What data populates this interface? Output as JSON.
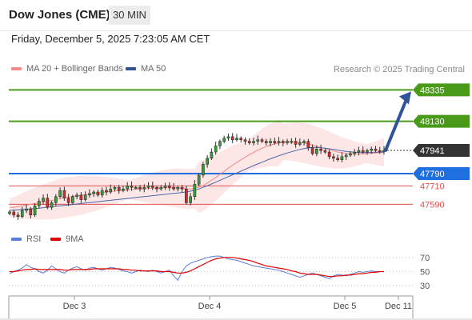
{
  "header": {
    "title": "Dow Jones (CME)",
    "interval": "30 MIN",
    "datetime": "Friday, December 5, 2025 7:23:05 AM CET"
  },
  "legend": {
    "ma20": {
      "label": "MA 20 + Bollinger Bands",
      "color": "#f08a8a"
    },
    "ma50": {
      "label": "MA 50",
      "color": "#2f5597"
    }
  },
  "credit": "Research © 2025 Trading Central",
  "rsi_legend": {
    "rsi": {
      "label": "RSI",
      "color": "#5b7fd6"
    },
    "ma9": {
      "label": "9MA",
      "color": "#e00000"
    }
  },
  "chart_data": [
    {
      "type": "candlestick",
      "ylim": [
        47420,
        48420
      ],
      "last_price": {
        "value": 47941,
        "label": "47941"
      },
      "levels": [
        {
          "value": 48335,
          "label": "48335",
          "kind": "resistance",
          "color": "#4a9a1a"
        },
        {
          "value": 48130,
          "label": "48130",
          "kind": "resistance",
          "color": "#4a9a1a"
        },
        {
          "value": 47790,
          "label": "47790",
          "kind": "pivot",
          "color": "#1f6fe0"
        },
        {
          "value": 47710,
          "label": "47710",
          "kind": "support",
          "color": "#e05050"
        },
        {
          "value": 47590,
          "label": "47590",
          "kind": "support",
          "color": "#e05050"
        }
      ],
      "target_arrow": {
        "from": 47941,
        "to": 48335
      },
      "x_labels": [
        "Dec 3",
        "Dec 4",
        "Dec 5",
        "Dec 11"
      ],
      "close_path": [
        47540,
        47520,
        47510,
        47550,
        47560,
        47520,
        47580,
        47610,
        47630,
        47570,
        47600,
        47640,
        47680,
        47630,
        47600,
        47640,
        47650,
        47620,
        47650,
        47660,
        47670,
        47650,
        47680,
        47670,
        47690,
        47700,
        47680,
        47690,
        47710,
        47700,
        47700,
        47690,
        47700,
        47710,
        47700,
        47690,
        47700,
        47710,
        47700,
        47690,
        47700,
        47690,
        47600,
        47640,
        47720,
        47780,
        47850,
        47890,
        47930,
        47970,
        48000,
        48020,
        48030,
        48010,
        48020,
        48010,
        48000,
        47990,
        48000,
        48010,
        48000,
        47990,
        48000,
        47990,
        48000,
        47990,
        48000,
        48000,
        47980,
        47990,
        48000,
        47960,
        47920,
        47950,
        47940,
        47930,
        47900,
        47890,
        47880,
        47900,
        47910,
        47920,
        47930,
        47940,
        47930,
        47940,
        47950,
        47940,
        47935,
        47941
      ],
      "ma20_path": [
        47570,
        47570,
        47575,
        47580,
        47585,
        47590,
        47595,
        47600,
        47605,
        47610,
        47615,
        47620,
        47628,
        47633,
        47637,
        47641,
        47645,
        47648,
        47652,
        47656,
        47660,
        47663,
        47666,
        47670,
        47673,
        47676,
        47678,
        47681,
        47684,
        47686,
        47688,
        47690,
        47691,
        47693,
        47694,
        47695,
        47696,
        47697,
        47697,
        47697,
        47696,
        47694,
        47690,
        47689,
        47692,
        47700,
        47712,
        47728,
        47746,
        47765,
        47785,
        47805,
        47825,
        47845,
        47862,
        47880,
        47897,
        47913,
        47928,
        47942,
        47955,
        47966,
        47975,
        47983,
        47990,
        47994,
        47997,
        47998,
        47996,
        47994,
        47990,
        47984,
        47975,
        47968,
        47960,
        47953,
        47945,
        47937,
        47930,
        47926,
        47922,
        47920,
        47918,
        47918,
        47919,
        47920,
        47922,
        47924,
        47926,
        47928
      ],
      "ma50_path": [
        47550,
        47552,
        47554,
        47556,
        47558,
        47560,
        47562,
        47565,
        47568,
        47571,
        47574,
        47577,
        47580,
        47583,
        47586,
        47589,
        47592,
        47595,
        47598,
        47601,
        47604,
        47607,
        47610,
        47613,
        47616,
        47619,
        47622,
        47625,
        47628,
        47631,
        47634,
        47637,
        47640,
        47643,
        47646,
        47649,
        47652,
        47655,
        47658,
        47661,
        47664,
        47667,
        47670,
        47675,
        47682,
        47690,
        47700,
        47711,
        47722,
        47734,
        47746,
        47758,
        47770,
        47782,
        47794,
        47806,
        47818,
        47830,
        47842,
        47853,
        47864,
        47875,
        47886,
        47896,
        47906,
        47915,
        47924,
        47932,
        47940,
        47947,
        47953,
        47957,
        47960,
        47960,
        47958,
        47955,
        47951,
        47947,
        47942,
        47938,
        47934,
        47931,
        47929,
        47928,
        47927,
        47927,
        47928,
        47929,
        47930,
        47931
      ]
    },
    {
      "type": "line",
      "ylim": [
        20,
        80
      ],
      "y_ticks": [
        {
          "value": 70,
          "label": "70"
        },
        {
          "value": 50,
          "label": "50"
        },
        {
          "value": 30,
          "label": "30"
        }
      ],
      "rsi": [
        47,
        50,
        52,
        55,
        60,
        56,
        54,
        50,
        48,
        52,
        58,
        54,
        50,
        48,
        52,
        55,
        57,
        54,
        52,
        55,
        56,
        54,
        52,
        54,
        56,
        55,
        53,
        51,
        50,
        48,
        50,
        52,
        51,
        50,
        52,
        50,
        48,
        50,
        52,
        44,
        38,
        50,
        58,
        62,
        64,
        66,
        68,
        70,
        71,
        72,
        72,
        70,
        68,
        67,
        66,
        64,
        62,
        60,
        58,
        57,
        56,
        55,
        54,
        53,
        52,
        50,
        48,
        46,
        44,
        42,
        44,
        46,
        48,
        46,
        44,
        42,
        40,
        44,
        46,
        45,
        44,
        46,
        48,
        50,
        49,
        50,
        51,
        50,
        50,
        50
      ],
      "ma9": [
        50,
        50,
        51,
        52,
        53,
        53,
        54,
        53,
        53,
        53,
        53,
        53,
        53,
        52,
        52,
        53,
        53,
        53,
        53,
        53,
        54,
        54,
        54,
        54,
        54,
        54,
        54,
        53,
        53,
        52,
        52,
        51,
        51,
        51,
        51,
        51,
        50,
        50,
        50,
        49,
        48,
        48,
        49,
        51,
        54,
        57,
        60,
        63,
        66,
        68,
        69,
        70,
        70,
        70,
        69,
        68,
        67,
        66,
        64,
        62,
        60,
        58,
        57,
        56,
        55,
        54,
        53,
        51,
        50,
        48,
        47,
        46,
        46,
        46,
        45,
        44,
        43,
        43,
        44,
        44,
        45,
        45,
        46,
        47,
        47,
        48,
        49,
        49,
        50,
        50
      ]
    }
  ]
}
